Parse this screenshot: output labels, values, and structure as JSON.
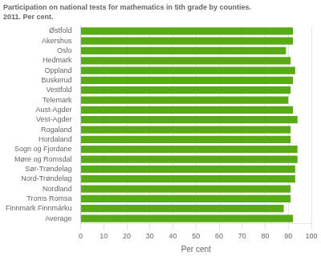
{
  "chart_data": {
    "type": "bar",
    "orientation": "horizontal",
    "title": "Participation on national tests for mathematics in 5th grade by counties.",
    "subtitle": "2011. Per cent.",
    "categories": [
      "Østfold",
      "Akershus",
      "Oslo",
      "Hedmark",
      "Oppland",
      "Buskerud",
      "Vestfold",
      "Telemark",
      "Aust-Agder",
      "Vest-Agder",
      "Rogaland",
      "Hordaland",
      "Sogn og Fjordane",
      "Møre og Romsdal",
      "Sør-Trøndelag",
      "Nord-Trøndelag",
      "Nordland",
      "Troms Romsa",
      "Finnmark Finnmárku",
      "Average"
    ],
    "values": [
      92,
      92,
      89,
      91,
      93,
      92,
      91,
      90,
      92,
      94,
      91,
      91,
      94,
      94,
      93,
      93,
      91,
      91,
      88,
      92
    ],
    "color": "#5aaa18",
    "xlabel": "Per cent",
    "xlim": [
      0,
      100
    ],
    "xticks": [
      0,
      10,
      20,
      30,
      40,
      50,
      60,
      70,
      80,
      90,
      100
    ],
    "grid": true
  }
}
